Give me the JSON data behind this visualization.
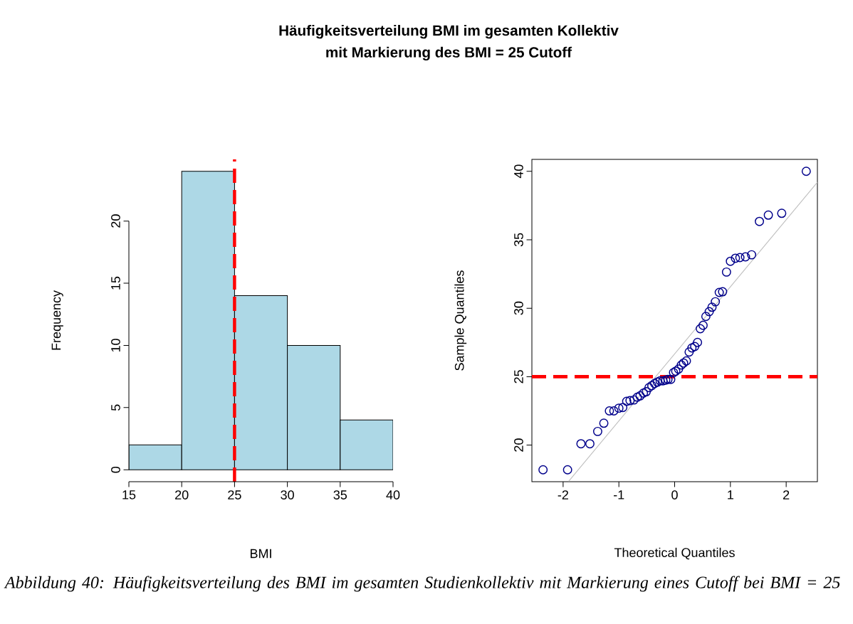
{
  "chart_data": [
    {
      "type": "histogram",
      "title": "Häufigkeitsverteilung BMI im gesamten Kollektiv",
      "subtitle": "mit Markierung des BMI = 25 Cutoff",
      "xlabel": "BMI",
      "ylabel": "Frequency",
      "bins": [
        15,
        20,
        25,
        30,
        35,
        40
      ],
      "values": [
        2,
        24,
        14,
        10,
        4
      ],
      "color": "#add8e6",
      "xlim": [
        15,
        40
      ],
      "ylim": [
        -0.96,
        24.96
      ],
      "xticks": [
        15,
        20,
        25,
        30,
        35,
        40
      ],
      "yticks": [
        0,
        5,
        10,
        15,
        20
      ],
      "ref_lines": [
        {
          "axis": "x",
          "value": 25,
          "color": "#ff0000",
          "line_style": "dashed"
        }
      ],
      "annotations": [
        "Abbildung 40: Häufigkeitsverteilung des BMI im gesamten Studienkollektiv mit Markierung eines Cutoff bei BMI = 25"
      ]
    },
    {
      "type": "scatter",
      "xlabel": "Theoretical Quantiles",
      "ylabel": "Sample Quantiles",
      "xlim": [
        -2.56,
        2.56
      ],
      "ylim": [
        17.33,
        40.87
      ],
      "xticks": [
        -2,
        -1,
        0,
        1,
        2
      ],
      "yticks": [
        20,
        25,
        30,
        35,
        40
      ],
      "series": [
        {
          "type": "scatter",
          "color": "#00008b",
          "marker": "circle",
          "x": [
            -2.36,
            -1.92,
            -1.68,
            -1.52,
            -1.38,
            -1.27,
            -1.17,
            -1.09,
            -1.0,
            -0.93,
            -0.86,
            -0.8,
            -0.73,
            -0.67,
            -0.62,
            -0.56,
            -0.51,
            -0.46,
            -0.41,
            -0.36,
            -0.31,
            -0.26,
            -0.21,
            -0.16,
            -0.12,
            -0.07,
            -0.02,
            0.02,
            0.07,
            0.12,
            0.16,
            0.21,
            0.26,
            0.31,
            0.36,
            0.41,
            0.46,
            0.51,
            0.56,
            0.62,
            0.67,
            0.73,
            0.8,
            0.86,
            0.93,
            1.0,
            1.09,
            1.17,
            1.27,
            1.38,
            1.52,
            1.68,
            1.92,
            2.36
          ],
          "values": [
            18.2,
            18.2,
            20.1,
            20.1,
            21.0,
            21.6,
            22.5,
            22.5,
            22.7,
            22.75,
            23.2,
            23.25,
            23.3,
            23.5,
            23.6,
            23.8,
            23.9,
            24.2,
            24.35,
            24.5,
            24.6,
            24.7,
            24.7,
            24.75,
            24.8,
            24.8,
            25.3,
            25.4,
            25.55,
            25.85,
            26.0,
            26.15,
            26.8,
            27.1,
            27.2,
            27.5,
            28.5,
            28.75,
            29.4,
            29.75,
            30.07,
            30.47,
            31.15,
            31.2,
            32.64,
            33.43,
            33.65,
            33.7,
            33.75,
            33.9,
            36.34,
            36.8,
            36.93,
            40.0
          ]
        },
        {
          "type": "line",
          "color": "#bebebe",
          "x": [
            -1.9,
            2.56
          ],
          "values": [
            17.36,
            39.2
          ]
        }
      ],
      "ref_lines": [
        {
          "axis": "y",
          "value": 25,
          "color": "#ff0000",
          "line_style": "dashed"
        }
      ]
    }
  ]
}
